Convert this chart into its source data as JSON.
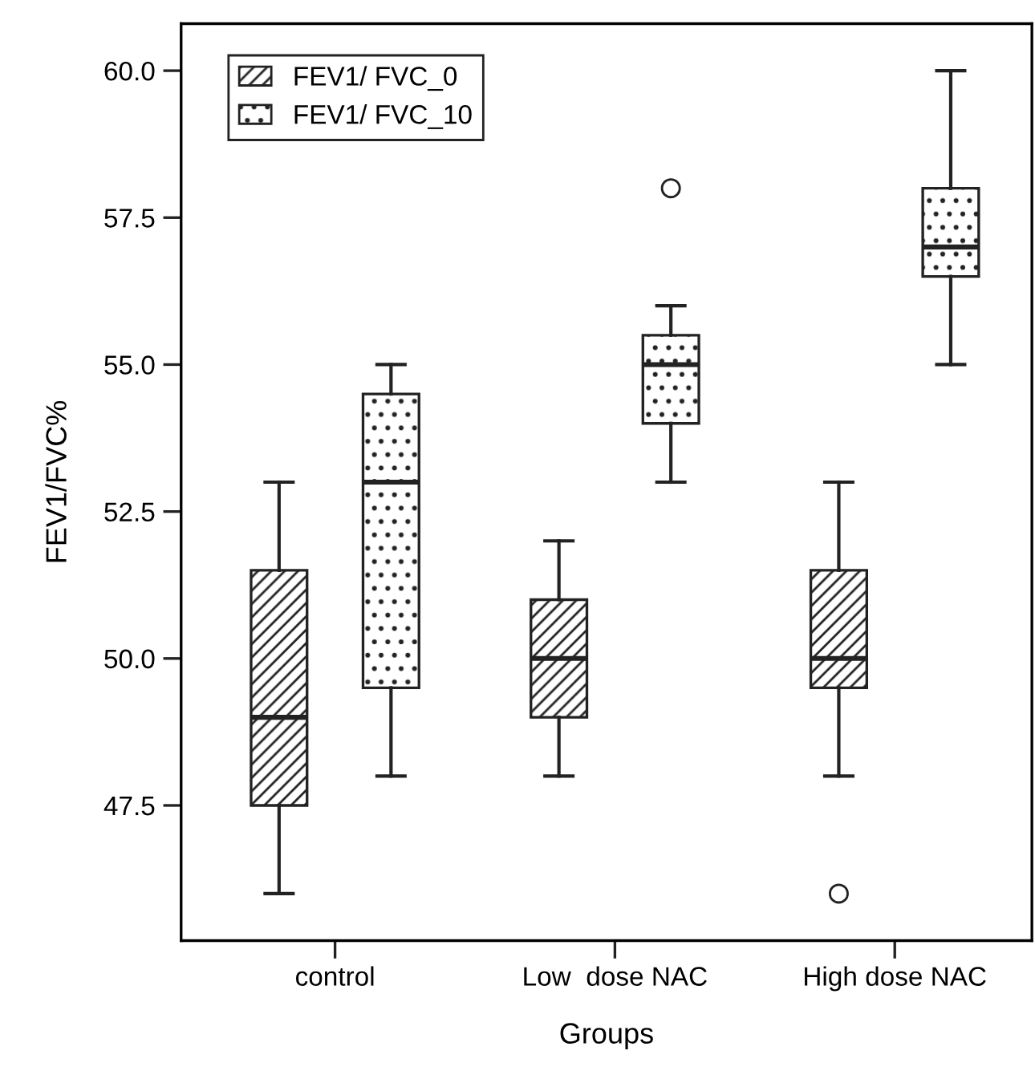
{
  "chart_data": {
    "type": "box",
    "xlabel": "Groups",
    "ylabel": "FEV1/FVC%",
    "categories": [
      "control",
      "Low  dose NAC",
      "High dose NAC"
    ],
    "series": [
      {
        "name": "FEV1/ FVC_0",
        "color": "#222222",
        "boxes": [
          {
            "low": 46,
            "q1": 47.5,
            "median": 49,
            "q3": 51.5,
            "high": 53
          },
          {
            "low": 48,
            "q1": 49,
            "median": 50,
            "q3": 51,
            "high": 52
          },
          {
            "low": 48,
            "q1": 49.5,
            "median": 50,
            "q3": 51.5,
            "high": 53,
            "outliers": [
              46
            ]
          }
        ]
      },
      {
        "name": "FEV1/ FVC_10",
        "color": "#222222",
        "boxes": [
          {
            "low": 48,
            "q1": 49.5,
            "median": 53,
            "q3": 54.5,
            "high": 55
          },
          {
            "low": 53,
            "q1": 54,
            "median": 55,
            "q3": 55.5,
            "high": 56,
            "outliers": [
              58
            ]
          },
          {
            "low": 55,
            "q1": 56.5,
            "median": 57,
            "q3": 58,
            "high": 60
          }
        ]
      }
    ],
    "ylim": [
      45.2,
      60.8
    ],
    "yticks": [
      {
        "value": 47.5,
        "label": "47.5"
      },
      {
        "value": 50,
        "label": "50.0"
      },
      {
        "value": 52.5,
        "label": "52.5"
      },
      {
        "value": 55,
        "label": "55.0"
      },
      {
        "value": 57.5,
        "label": "57.5"
      },
      {
        "value": 60,
        "label": "60.0"
      }
    ],
    "grid": false,
    "legend": "top left"
  }
}
